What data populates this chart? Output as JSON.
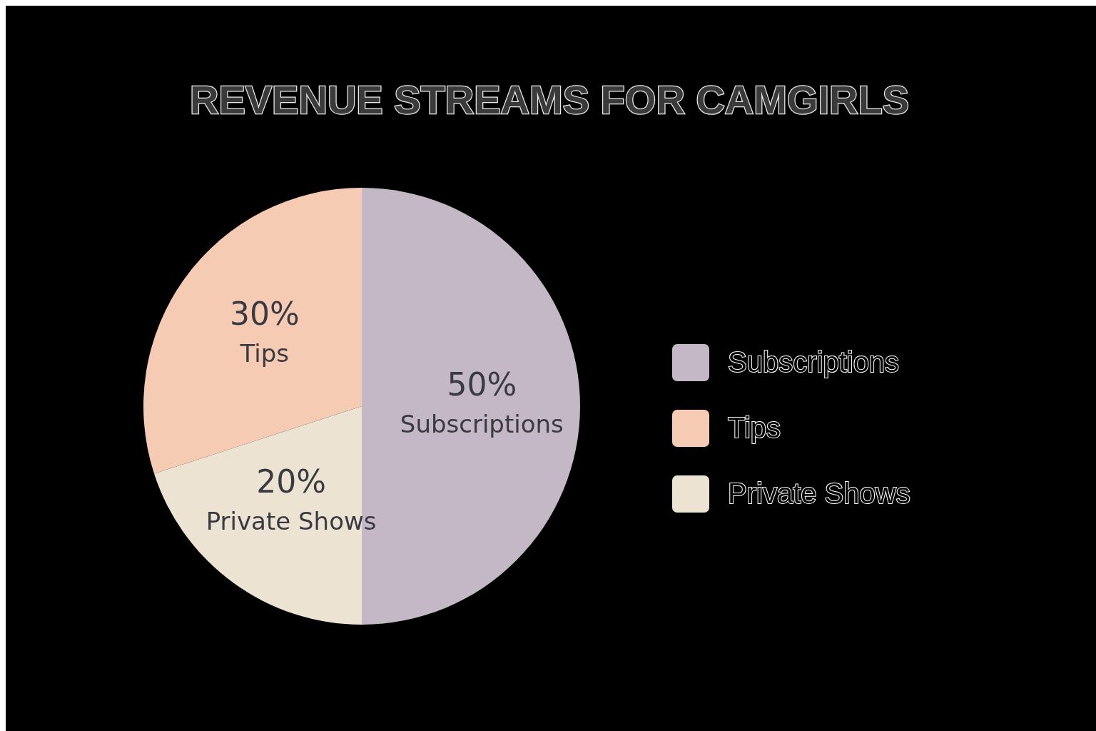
{
  "chart_data": {
    "type": "pie",
    "title": "REVENUE STREAMS FOR CAMGIRLS",
    "categories": [
      "Subscriptions",
      "Tips",
      "Private Shows"
    ],
    "values": [
      50,
      30,
      20
    ],
    "colors": [
      "#c4b8c6",
      "#f6cbb3",
      "#ede3d3"
    ],
    "value_labels": [
      "50%",
      "30%",
      "20%"
    ],
    "legend": "right"
  }
}
